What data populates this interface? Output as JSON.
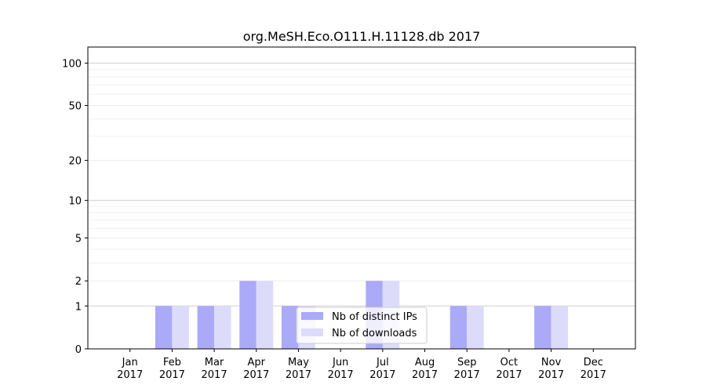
{
  "chart_data": {
    "type": "bar",
    "title": "org.MeSH.Eco.O111.H.11128.db 2017",
    "xlabel": "",
    "ylabel": "",
    "categories": [
      [
        "Jan",
        "2017"
      ],
      [
        "Feb",
        "2017"
      ],
      [
        "Mar",
        "2017"
      ],
      [
        "Apr",
        "2017"
      ],
      [
        "May",
        "2017"
      ],
      [
        "Jun",
        "2017"
      ],
      [
        "Jul",
        "2017"
      ],
      [
        "Aug",
        "2017"
      ],
      [
        "Sep",
        "2017"
      ],
      [
        "Oct",
        "2017"
      ],
      [
        "Nov",
        "2017"
      ],
      [
        "Dec",
        "2017"
      ]
    ],
    "series": [
      {
        "name": "Nb of distinct IPs",
        "color": "#aaaaf8",
        "values": [
          0,
          1,
          1,
          2,
          1,
          0,
          2,
          0,
          1,
          0,
          1,
          0
        ]
      },
      {
        "name": "Nb of downloads",
        "color": "#dcdcfa",
        "values": [
          0,
          1,
          1,
          2,
          1,
          0,
          2,
          0,
          1,
          0,
          1,
          0
        ]
      }
    ],
    "y_scale": "log(1+y)",
    "ylim": [
      0,
      130
    ],
    "y_ticks": [
      0,
      1,
      2,
      5,
      10,
      20,
      50,
      100
    ],
    "grid": true,
    "legend_position": "lower-center"
  }
}
